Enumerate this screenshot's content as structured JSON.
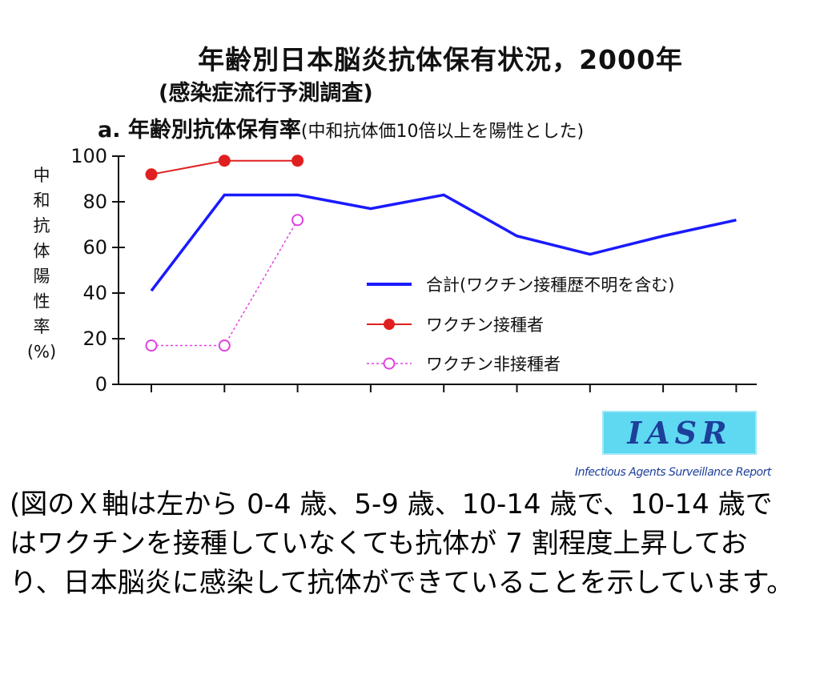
{
  "header": {
    "title": "年齢別日本脳炎抗体保有状況，2000年",
    "subtitle": "(感染症流行予測調査)",
    "chart_label": "a. 年齢別抗体保有率",
    "chart_note": "(中和抗体価10倍以上を陽性とした)"
  },
  "logo": {
    "text": "IASR",
    "caption": "Infectious Agents Surveillance Report"
  },
  "caption": "(図のＸ軸は左から 0-4 歳、5-9 歳、10-14 歳で、10-14 歳ではワクチンを接種していなくても抗体が 7 割程度上昇しており、日本脳炎に感染して抗体ができていることを示しています。",
  "chart_data": {
    "type": "line",
    "title": "年齢別抗体保有率",
    "ylabel": [
      "中",
      "和",
      "抗",
      "体",
      "陽",
      "性",
      "率",
      "(%)"
    ],
    "ylim": [
      0,
      100
    ],
    "yticks": [
      0,
      20,
      40,
      60,
      80,
      100
    ],
    "x_count": 9,
    "legend_position": "center-right",
    "series": [
      {
        "name": "合計(ワクチン接種歴不明を含む)",
        "color": "#1a1aff",
        "style": "solid",
        "marker": "none",
        "values": [
          41,
          83,
          83,
          77,
          83,
          65,
          57,
          65,
          72
        ]
      },
      {
        "name": "ワクチン接種者",
        "color": "#e02020",
        "style": "solid",
        "marker": "filled-circle",
        "values": [
          92,
          98,
          98,
          null,
          null,
          null,
          null,
          null,
          null
        ]
      },
      {
        "name": "ワクチン非接種者",
        "color": "#e040e0",
        "style": "dashed",
        "marker": "open-circle",
        "values": [
          17,
          17,
          72,
          null,
          null,
          null,
          null,
          null,
          null
        ]
      }
    ]
  }
}
